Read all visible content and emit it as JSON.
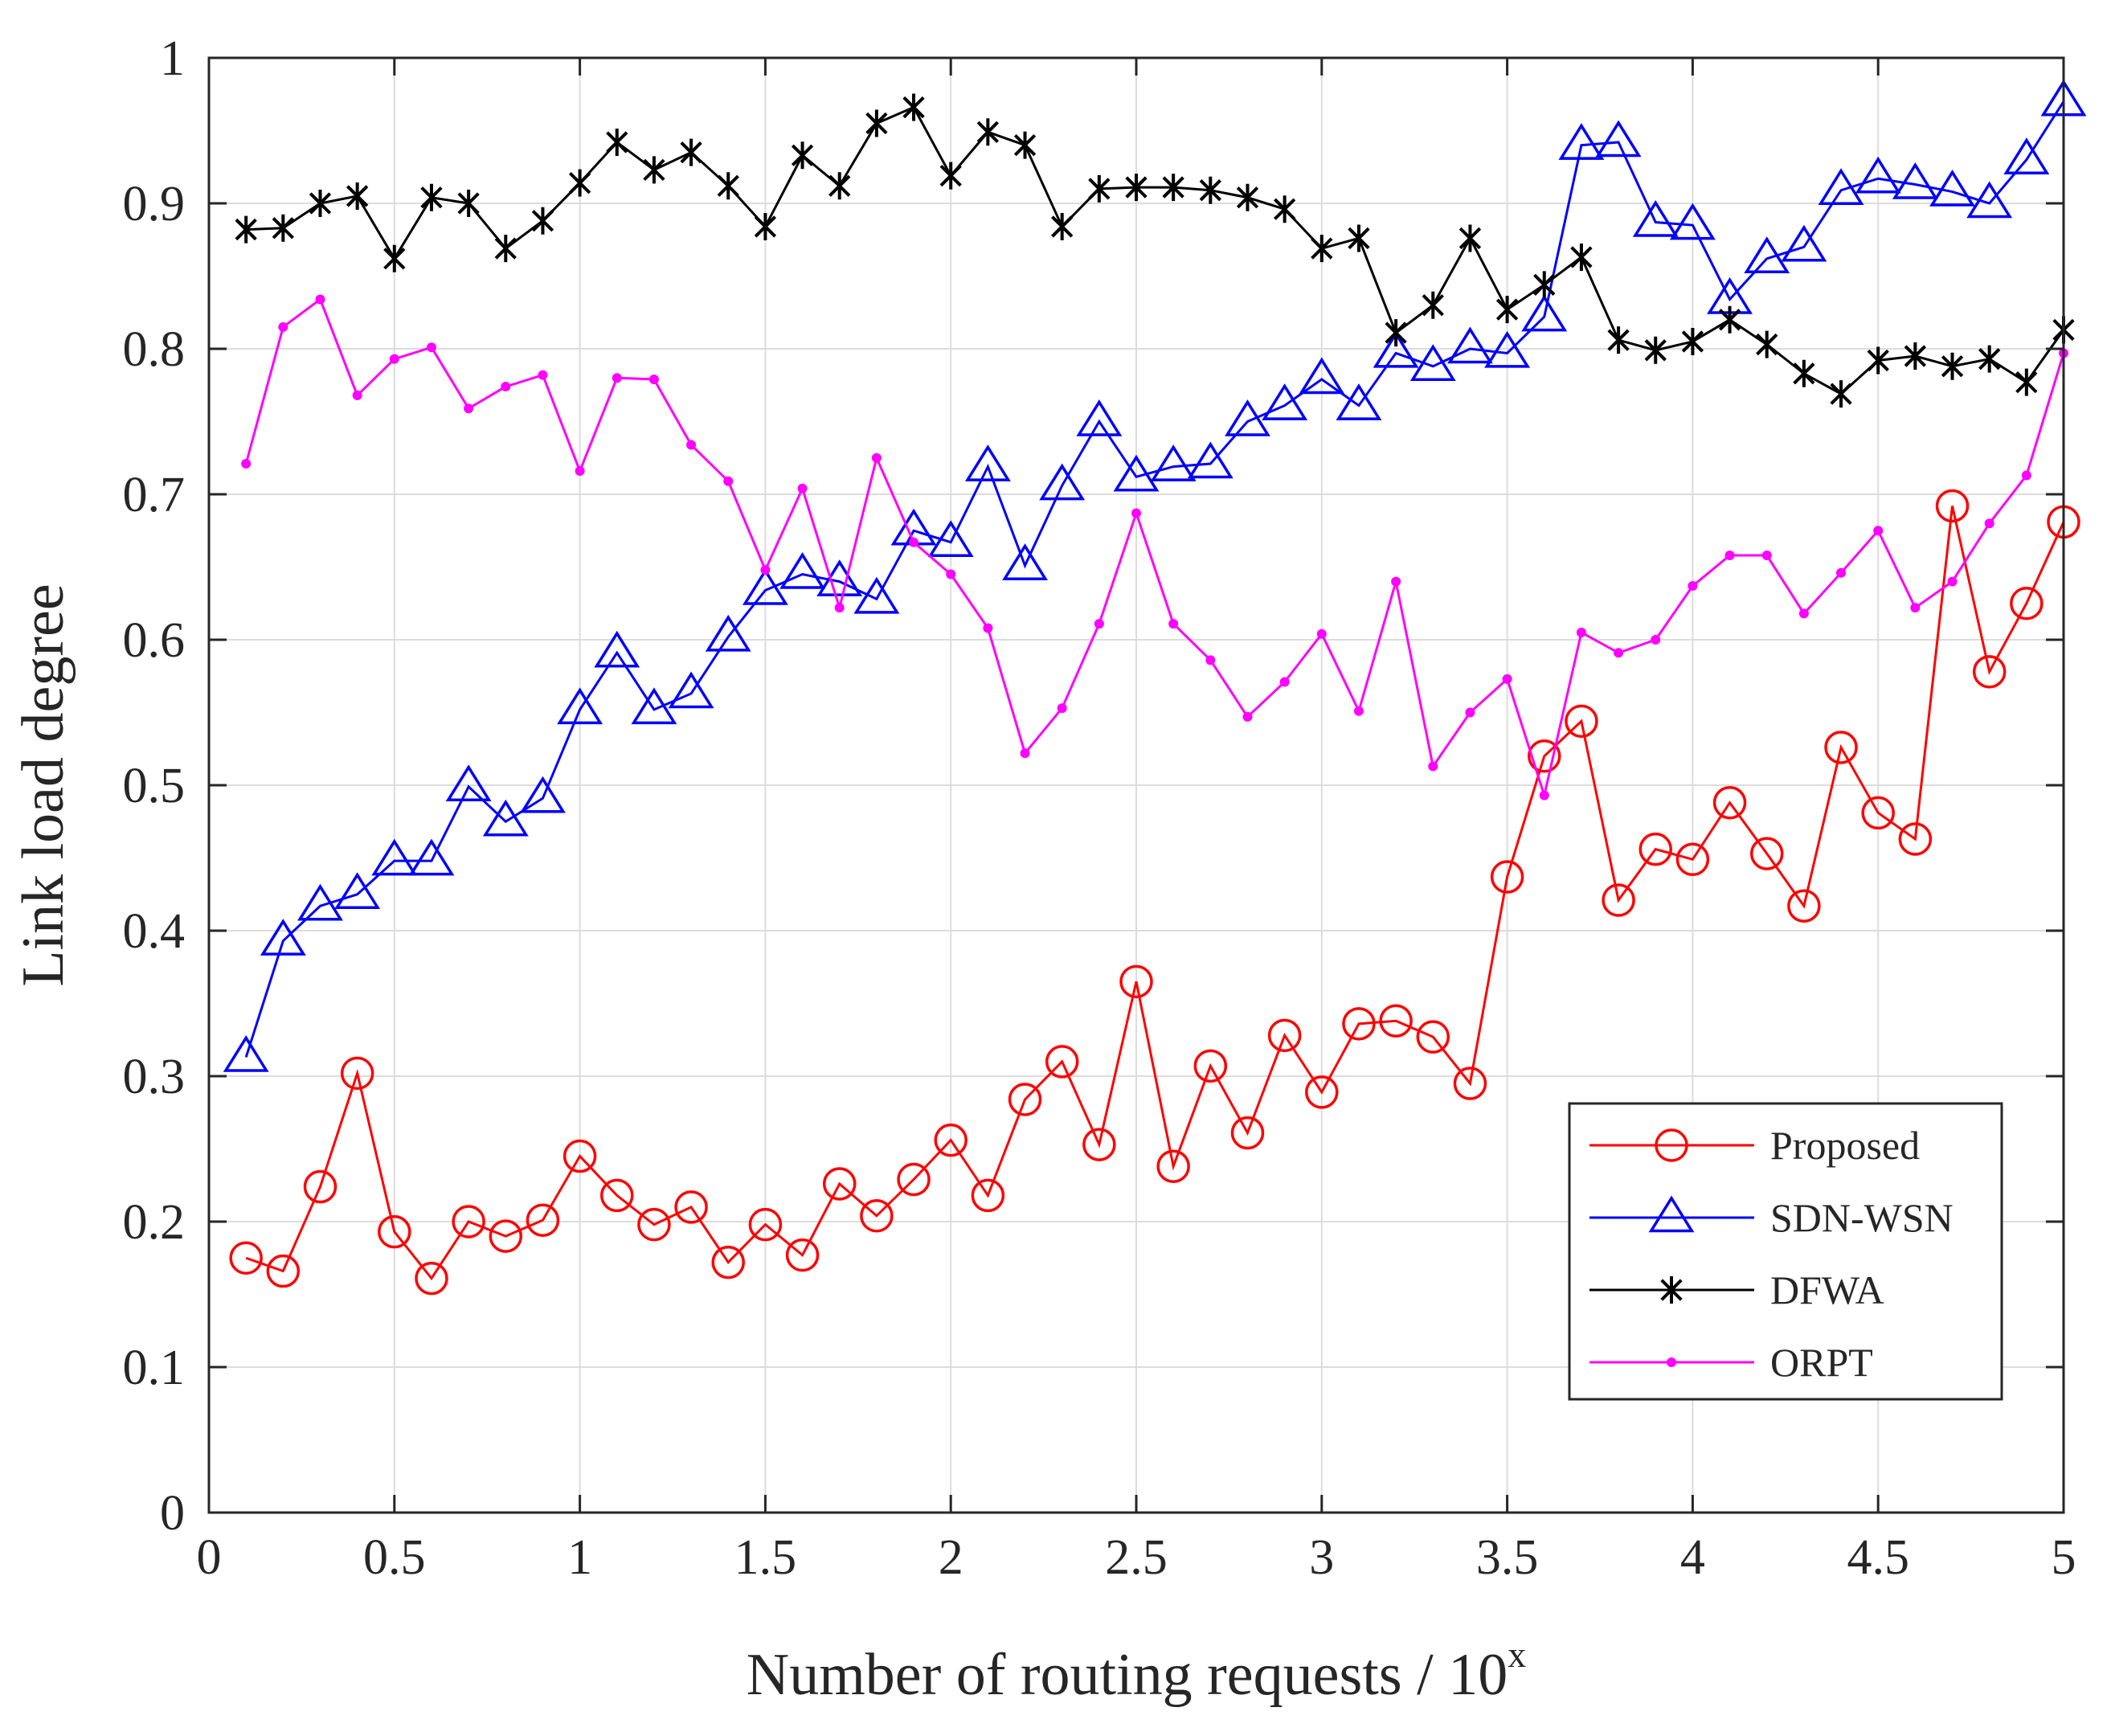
{
  "chart_data": {
    "type": "line",
    "title": "",
    "xlabel": "Number of routing requests / 10",
    "xlabel_superscript": "x",
    "ylabel": "Link load degree",
    "xlim": [
      0,
      5
    ],
    "ylim": [
      0,
      1
    ],
    "xticks": [
      0,
      0.5,
      1,
      1.5,
      2,
      2.5,
      3,
      3.5,
      4,
      4.5,
      5
    ],
    "xtick_labels": [
      "0",
      "0.5",
      "1",
      "1.5",
      "2",
      "2.5",
      "3",
      "3.5",
      "4",
      "4.5",
      "5"
    ],
    "yticks": [
      0,
      0.1,
      0.2,
      0.3,
      0.4,
      0.5,
      0.6,
      0.7,
      0.8,
      0.9,
      1
    ],
    "ytick_labels": [
      "0",
      "0.1",
      "0.2",
      "0.3",
      "0.4",
      "0.5",
      "0.6",
      "0.7",
      "0.8",
      "0.9",
      "1"
    ],
    "grid": true,
    "legend_position": "bottom-right",
    "x": [
      0.1,
      0.2,
      0.3,
      0.4,
      0.5,
      0.6,
      0.7,
      0.8,
      0.9,
      1.0,
      1.1,
      1.2,
      1.3,
      1.4,
      1.5,
      1.6,
      1.7,
      1.8,
      1.9,
      2.0,
      2.1,
      2.2,
      2.3,
      2.4,
      2.5,
      2.6,
      2.7,
      2.8,
      2.9,
      3.0,
      3.1,
      3.2,
      3.3,
      3.4,
      3.5,
      3.6,
      3.7,
      3.8,
      3.9,
      4.0,
      4.1,
      4.2,
      4.3,
      4.4,
      4.5,
      4.6,
      4.7,
      4.8,
      4.9,
      5.0
    ],
    "series": [
      {
        "name": "Proposed",
        "color": "#ff0000",
        "marker": "circle",
        "values": [
          0.175,
          0.166,
          0.224,
          0.302,
          0.193,
          0.161,
          0.2,
          0.19,
          0.201,
          0.245,
          0.218,
          0.198,
          0.21,
          0.172,
          0.198,
          0.177,
          0.226,
          0.204,
          0.229,
          0.256,
          0.218,
          0.284,
          0.31,
          0.253,
          0.365,
          0.238,
          0.307,
          0.261,
          0.328,
          0.289,
          0.336,
          0.338,
          0.327,
          0.295,
          0.437,
          0.52,
          0.544,
          0.421,
          0.456,
          0.449,
          0.488,
          0.453,
          0.417,
          0.526,
          0.481,
          0.463,
          0.692,
          0.578,
          0.625,
          0.681
        ]
      },
      {
        "name": "SDN-WSN",
        "color": "#0000ff",
        "marker": "triangle",
        "values": [
          0.313,
          0.393,
          0.417,
          0.425,
          0.448,
          0.448,
          0.499,
          0.475,
          0.491,
          0.552,
          0.591,
          0.552,
          0.563,
          0.602,
          0.634,
          0.645,
          0.64,
          0.628,
          0.675,
          0.667,
          0.719,
          0.651,
          0.706,
          0.75,
          0.712,
          0.719,
          0.721,
          0.75,
          0.761,
          0.779,
          0.761,
          0.797,
          0.788,
          0.8,
          0.797,
          0.822,
          0.94,
          0.942,
          0.887,
          0.885,
          0.834,
          0.862,
          0.87,
          0.909,
          0.917,
          0.913,
          0.908,
          0.9,
          0.93,
          0.97
        ]
      },
      {
        "name": "DFWA",
        "color": "#000000",
        "marker": "asterisk",
        "values": [
          0.882,
          0.883,
          0.9,
          0.905,
          0.862,
          0.904,
          0.9,
          0.869,
          0.888,
          0.914,
          0.942,
          0.923,
          0.935,
          0.912,
          0.884,
          0.933,
          0.912,
          0.955,
          0.966,
          0.919,
          0.949,
          0.94,
          0.884,
          0.91,
          0.911,
          0.911,
          0.909,
          0.904,
          0.896,
          0.869,
          0.876,
          0.811,
          0.83,
          0.876,
          0.827,
          0.844,
          0.863,
          0.806,
          0.799,
          0.805,
          0.82,
          0.803,
          0.783,
          0.769,
          0.792,
          0.795,
          0.788,
          0.793,
          0.777,
          0.813
        ]
      },
      {
        "name": "ORPT",
        "color": "#ff00ff",
        "marker": "dot",
        "values": [
          0.721,
          0.815,
          0.834,
          0.768,
          0.793,
          0.801,
          0.759,
          0.774,
          0.782,
          0.716,
          0.78,
          0.779,
          0.734,
          0.709,
          0.648,
          0.704,
          0.622,
          0.725,
          0.667,
          0.645,
          0.608,
          0.522,
          0.553,
          0.611,
          0.687,
          0.611,
          0.586,
          0.547,
          0.571,
          0.604,
          0.551,
          0.64,
          0.513,
          0.55,
          0.573,
          0.493,
          0.605,
          0.591,
          0.6,
          0.637,
          0.658,
          0.658,
          0.618,
          0.646,
          0.675,
          0.622,
          0.64,
          0.68,
          0.713,
          0.797
        ]
      }
    ]
  }
}
